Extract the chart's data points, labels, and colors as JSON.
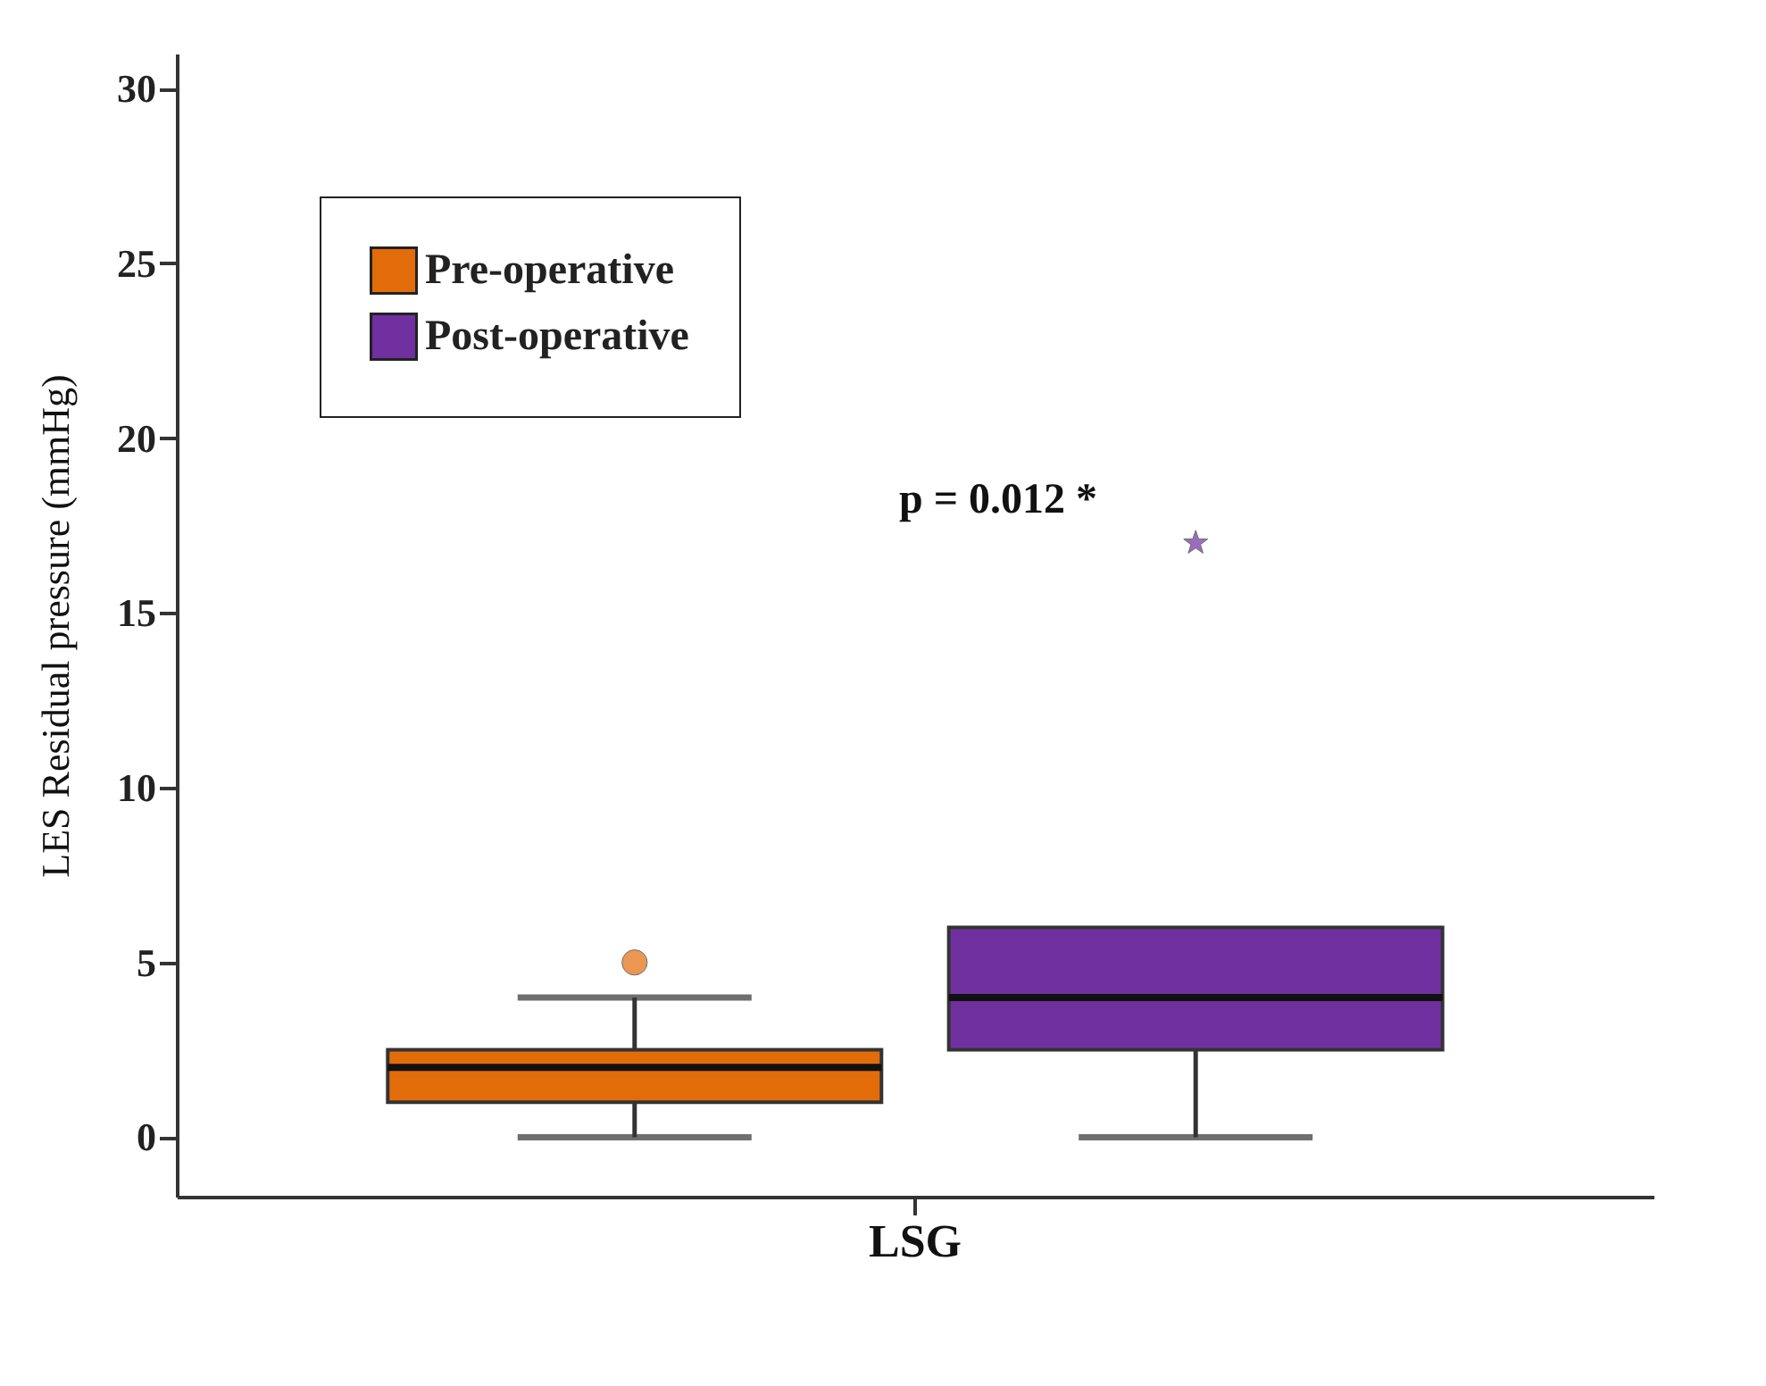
{
  "chart_data": {
    "type": "box",
    "ylabel": "LES Residual pressure (mmHg)",
    "categories": [
      "LSG"
    ],
    "series": [
      {
        "name": "Pre-operative",
        "color": "#e36c0a",
        "marker": "circle",
        "boxes": [
          {
            "low": 0,
            "q1": 1,
            "median": 2,
            "q3": 2.5,
            "high": 4,
            "outliers": [
              5
            ]
          }
        ]
      },
      {
        "name": "Post-operative",
        "color": "#7030a0",
        "marker": "star",
        "boxes": [
          {
            "low": 0,
            "q1": 2.5,
            "median": 4,
            "q3": 6,
            "high": 6,
            "outliers": [
              17
            ]
          }
        ]
      }
    ],
    "ylim": [
      -1.7,
      31
    ],
    "yticks": [
      0,
      5,
      10,
      15,
      20,
      25,
      30
    ],
    "grid": false,
    "legend": "top left",
    "annotations": [
      "p = 0.012 *"
    ]
  }
}
